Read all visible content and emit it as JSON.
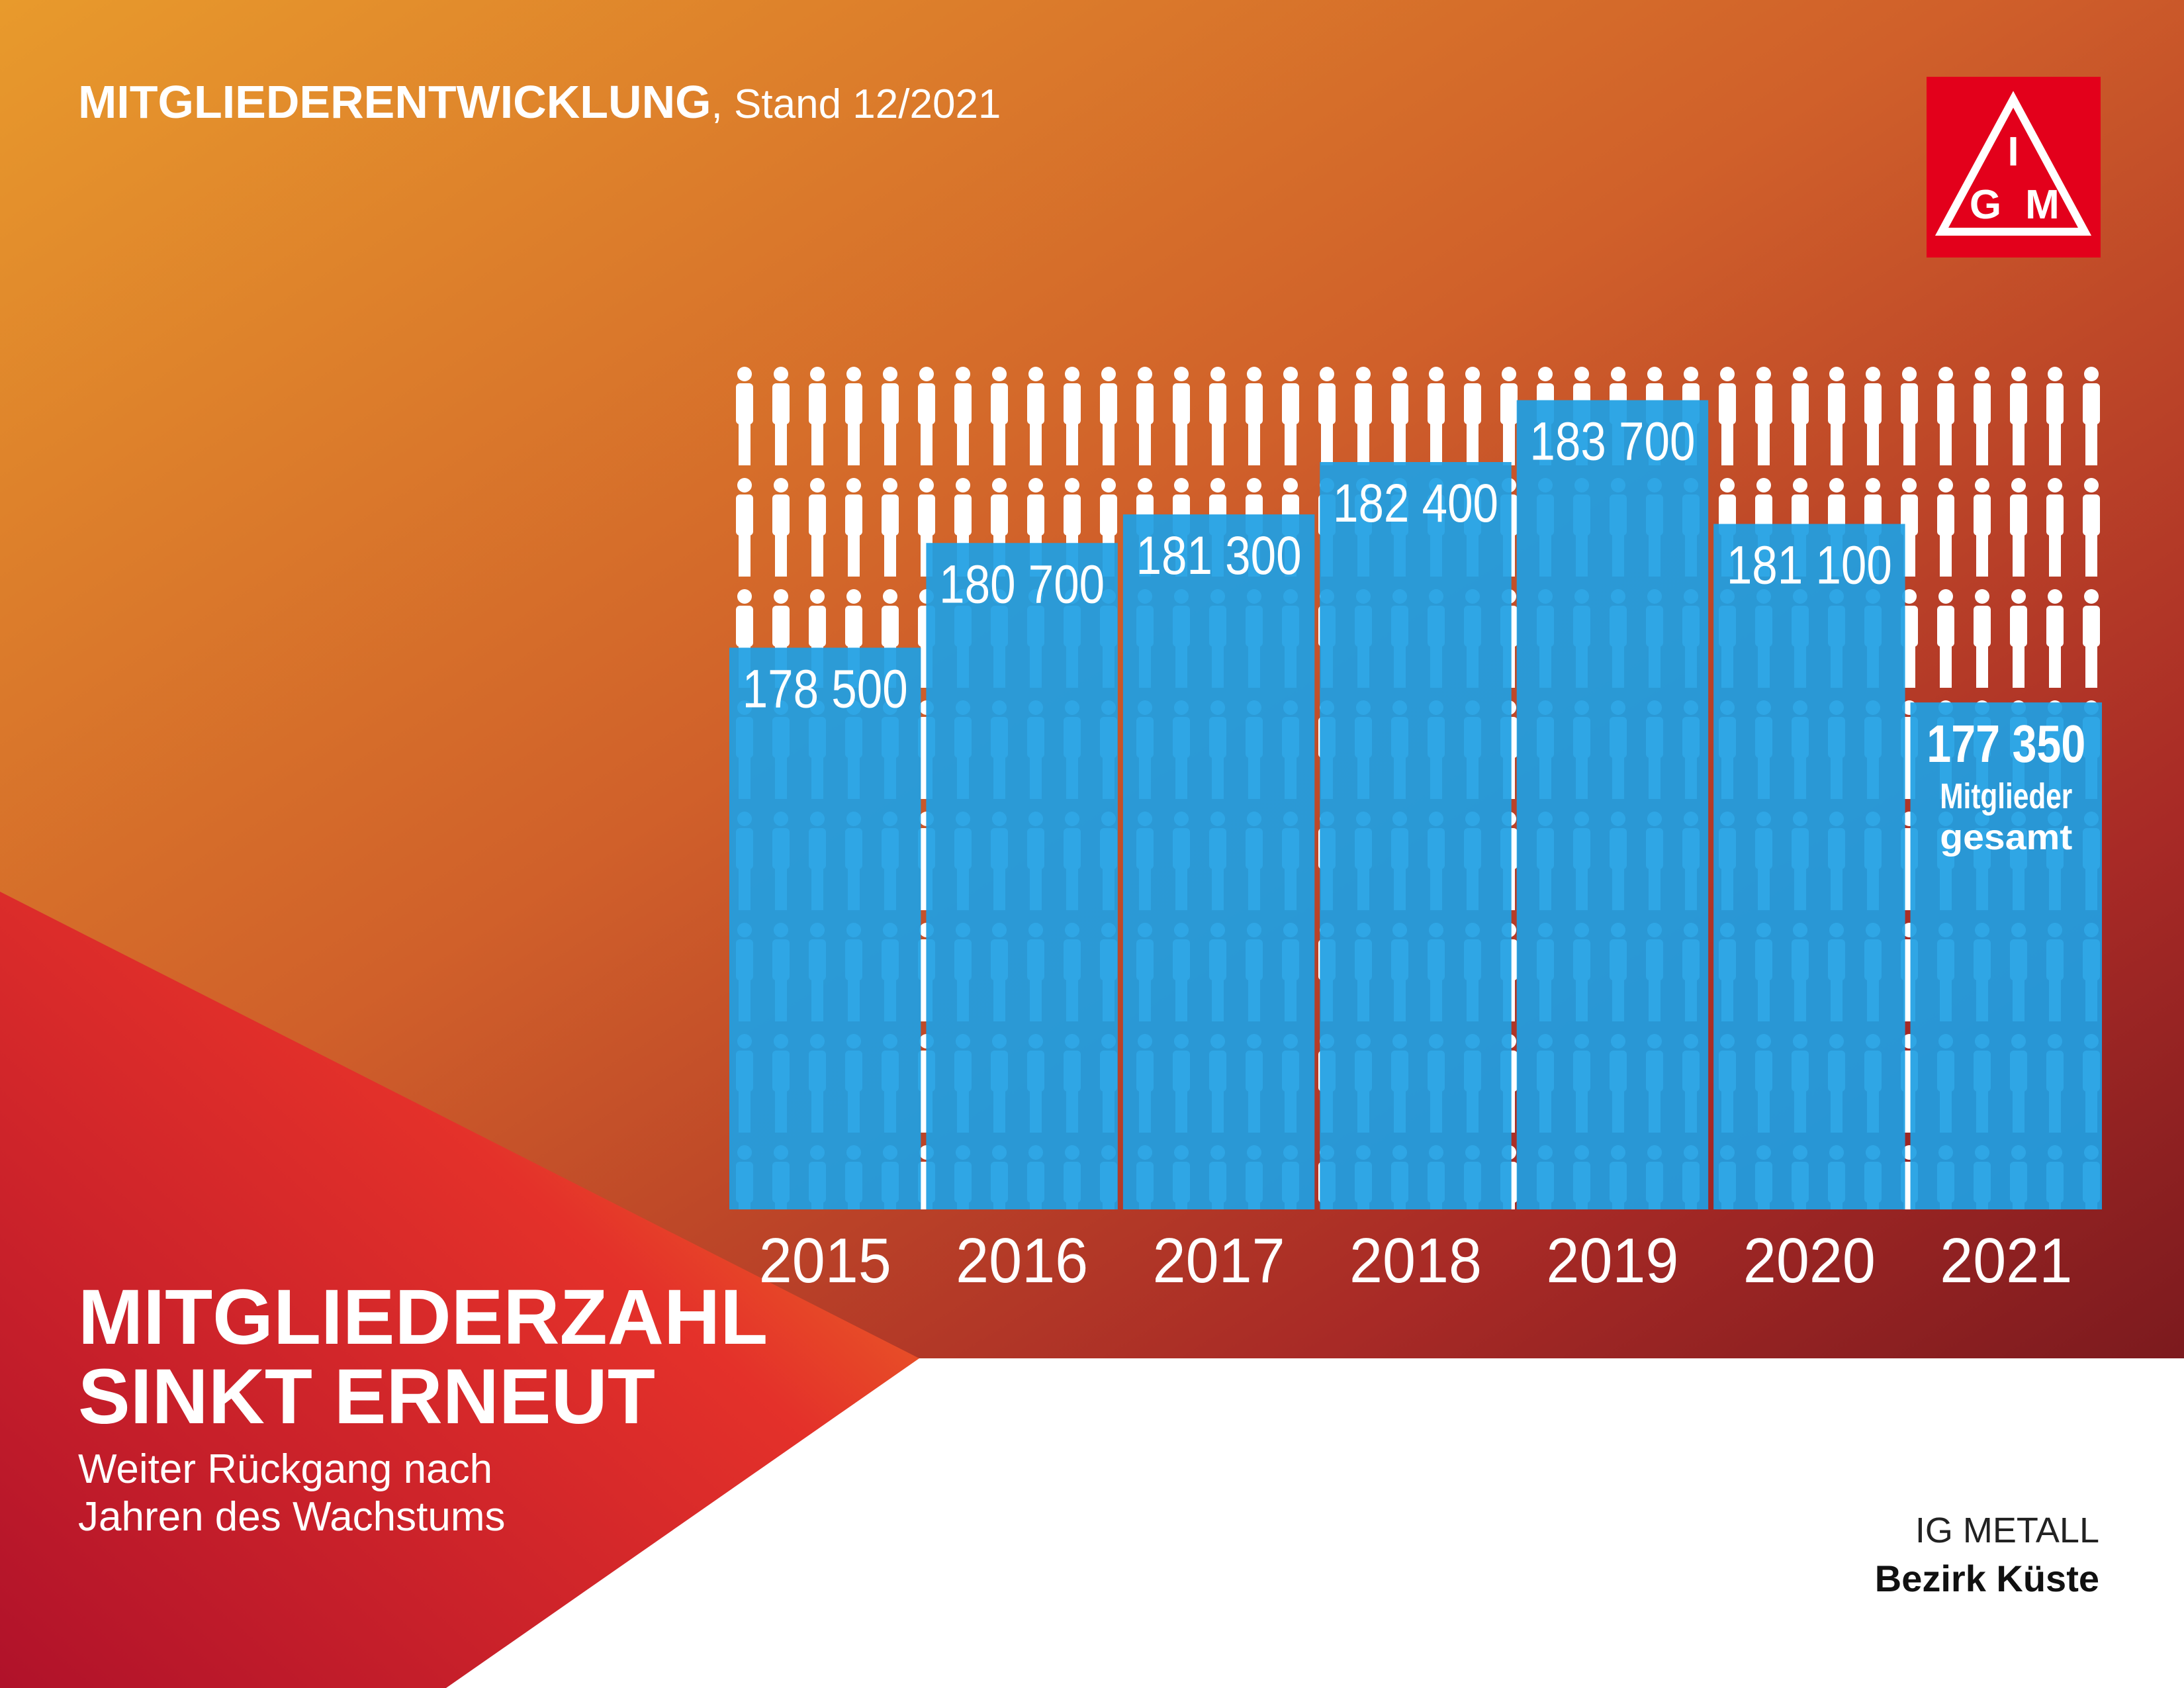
{
  "chart_data": {
    "type": "bar",
    "title": "MITGLIEDERENTWICKLUNG",
    "subtitle": ", Stand 12/2021",
    "categories": [
      "2015",
      "2016",
      "2017",
      "2018",
      "2019",
      "2020",
      "2021"
    ],
    "values": [
      178500,
      180700,
      181300,
      182400,
      183700,
      181100,
      177350
    ],
    "value_labels": [
      "178 500",
      "180 700",
      "181 300",
      "182 400",
      "183 700",
      "181 100",
      "177 350"
    ],
    "annotation": [
      "Mitglieder",
      "gesamt"
    ],
    "color": "#1f9fe3",
    "ylim": [
      166700,
      184500
    ]
  },
  "headline": [
    "MITGLIEDERZAHL",
    "SINKT ERNEUT"
  ],
  "subline": [
    "Weiter Rückgang nach",
    "Jahren des Wachstums"
  ],
  "footer": [
    "IG METALL",
    "Bezirk Küste"
  ],
  "logo": [
    "I",
    "G",
    "M"
  ]
}
